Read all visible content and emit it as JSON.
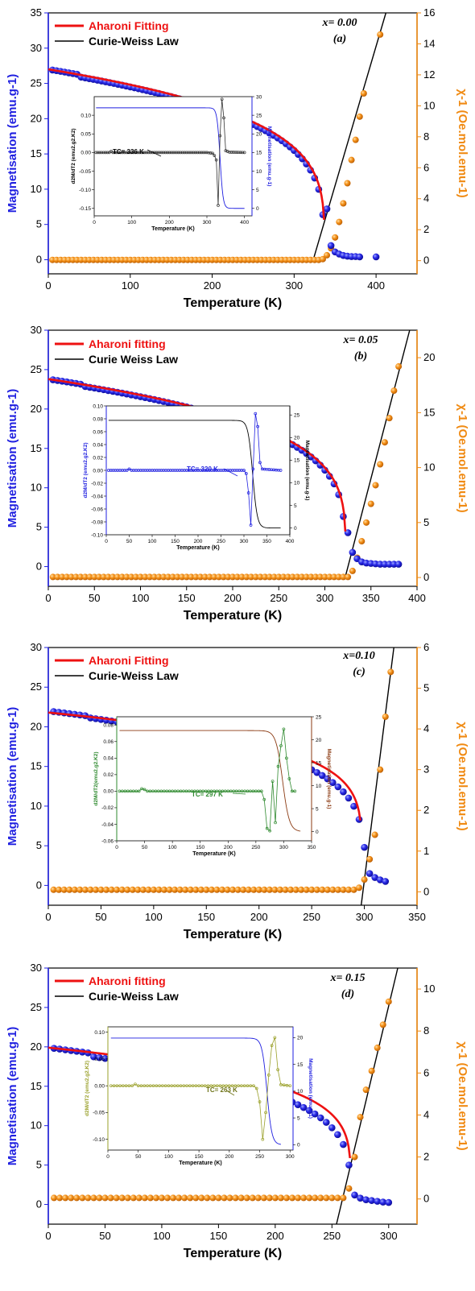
{
  "colors": {
    "mag": "#1f1fe0",
    "chi": "#f08a12",
    "fit": "#ee1111",
    "cw": "#000000"
  },
  "chart_data": [
    {
      "type": "scatter",
      "panel": "(a)",
      "composition": "x= 0.00",
      "xlabel": "Temperature (K)",
      "ylabel": "Magnetisation (emu.g-1)",
      "ylabel_right": "χ-1 (Oe.mol.emu-1)",
      "xlim": [
        0,
        450
      ],
      "ylim": [
        -2,
        35
      ],
      "y2lim": [
        -0.85,
        16
      ],
      "xticks": [
        0,
        100,
        200,
        300,
        400
      ],
      "yticks": [
        0,
        5,
        10,
        15,
        20,
        25,
        30,
        35
      ],
      "y2ticks": [
        0,
        2,
        4,
        6,
        8,
        10,
        12,
        14,
        16
      ],
      "legend": [
        "Aharoni Fitting",
        "Curie-Weiss Law"
      ],
      "mag": {
        "T0": 5,
        "T1": 335,
        "dT": 5,
        "M0": 27.0,
        "Tc": 336,
        "beta": 0.24,
        "dip": [
          40,
          0.3
        ],
        "tail": [
          [
            340,
            7.2
          ],
          [
            345,
            2.0
          ],
          [
            350,
            1.1
          ],
          [
            355,
            0.8
          ],
          [
            360,
            0.6
          ],
          [
            365,
            0.5
          ],
          [
            370,
            0.45
          ],
          [
            375,
            0.45
          ],
          [
            380,
            0.4
          ],
          [
            400,
            0.4
          ]
        ]
      },
      "chi": {
        "T0": 5,
        "T1": 330,
        "dT": 5,
        "base": 0.05,
        "pts": [
          [
            335,
            0.1
          ],
          [
            340,
            0.35
          ],
          [
            345,
            0.8
          ],
          [
            350,
            1.5
          ],
          [
            355,
            2.5
          ],
          [
            360,
            3.7
          ],
          [
            365,
            5.0
          ],
          [
            370,
            6.5
          ],
          [
            375,
            7.8
          ],
          [
            380,
            9.3
          ],
          [
            385,
            10.8
          ],
          [
            405,
            14.6
          ]
        ]
      },
      "fit": {
        "M0": 27.0,
        "Tc": 337,
        "beta": 0.24,
        "T0": 0,
        "T1": 336.5
      },
      "cw": {
        "x": [
          323,
          412
        ],
        "y": [
          0,
          16
        ]
      },
      "inset": {
        "xlabel": "Temperature (K)",
        "ylabel_left": "d2M/dT2 (emu2.g2.K2)",
        "ylabel_right": "Magnetisation (emu.g-1)",
        "xlim": [
          0,
          420
        ],
        "ylim": [
          -0.17,
          0.15
        ],
        "y2lim": [
          -2,
          30
        ],
        "xticks": [
          0,
          100,
          200,
          300,
          400
        ],
        "yticks": [
          -0.15,
          -0.1,
          -0.05,
          0.0,
          0.05,
          0.1
        ],
        "y2ticks": [
          0,
          5,
          10,
          15,
          20,
          25,
          30
        ],
        "tc_label": "TC= 336 K",
        "mag_color": "#1f1fe0",
        "d2_color": "#333333",
        "mag": {
          "M0": 27.0,
          "Tc": 335,
          "w": 4
        },
        "d2": [
          [
            5,
            0.0
          ],
          [
            40,
            0.0
          ],
          [
            45,
            0.003
          ],
          [
            50,
            0.0
          ],
          [
            300,
            0.0
          ],
          [
            315,
            -0.002
          ],
          [
            320,
            -0.008
          ],
          [
            325,
            -0.02
          ],
          [
            330,
            -0.142
          ],
          [
            335,
            0.045
          ],
          [
            340,
            0.143
          ],
          [
            345,
            0.093
          ],
          [
            350,
            0.005
          ],
          [
            360,
            0.001
          ],
          [
            400,
            0.0
          ]
        ],
        "tc_point": [
          336,
          0.0
        ]
      }
    },
    {
      "type": "scatter",
      "panel": "(b)",
      "composition": "x= 0.05",
      "xlabel": "Temperature (K)",
      "ylabel": "Magnetisation (emu.g-1)",
      "ylabel_right": "χ-1 (Oe.mol.emu-1)",
      "xlim": [
        0,
        400
      ],
      "ylim": [
        -2.5,
        30
      ],
      "y2lim": [
        -0.8,
        22.5
      ],
      "xticks": [
        0,
        50,
        100,
        150,
        200,
        250,
        300,
        350,
        400
      ],
      "yticks": [
        0,
        5,
        10,
        15,
        20,
        25,
        30
      ],
      "y2ticks": [
        0,
        5,
        10,
        15,
        20
      ],
      "legend": [
        "Aharoni fitting",
        "Curie Weiss Law"
      ],
      "mag": {
        "T0": 5,
        "T1": 320,
        "dT": 5,
        "M0": 23.8,
        "Tc": 321.5,
        "beta": 0.24,
        "dip": [
          40,
          0.2
        ],
        "tail": [
          [
            325,
            4.3
          ],
          [
            330,
            1.8
          ],
          [
            335,
            1.0
          ],
          [
            340,
            0.6
          ],
          [
            345,
            0.45
          ],
          [
            350,
            0.4
          ],
          [
            355,
            0.35
          ],
          [
            360,
            0.3
          ],
          [
            365,
            0.3
          ],
          [
            370,
            0.3
          ],
          [
            375,
            0.3
          ],
          [
            380,
            0.3
          ]
        ]
      },
      "chi": {
        "T0": 5,
        "T1": 325,
        "dT": 5,
        "base": 0.05,
        "pts": [
          [
            330,
            0.6
          ],
          [
            335,
            1.8
          ],
          [
            340,
            3.3
          ],
          [
            345,
            5.0
          ],
          [
            350,
            6.7
          ],
          [
            355,
            8.4
          ],
          [
            360,
            10.3
          ],
          [
            365,
            12.3
          ],
          [
            370,
            14.5
          ],
          [
            375,
            17.0
          ],
          [
            380,
            19.2
          ]
        ]
      },
      "fit": {
        "M0": 23.8,
        "Tc": 322.5,
        "beta": 0.24,
        "T0": 0,
        "T1": 322.2
      },
      "cw": {
        "x": [
          322,
          392
        ],
        "y": [
          0,
          22.5
        ]
      },
      "inset": {
        "xlabel": "Temperature (K)",
        "ylabel_left": "d2M/dT2 (emu2.g2.K2)",
        "ylabel_right": "Magnetisation (emu.g-1)",
        "xlim": [
          0,
          400
        ],
        "ylim": [
          -0.1,
          0.1
        ],
        "y2lim": [
          -1.5,
          27
        ],
        "xticks": [
          0,
          50,
          100,
          150,
          200,
          250,
          300,
          350,
          400
        ],
        "yticks": [
          -0.1,
          -0.08,
          -0.06,
          -0.04,
          -0.02,
          0.0,
          0.02,
          0.04,
          0.06,
          0.08,
          0.1
        ],
        "y2ticks": [
          0,
          5,
          10,
          15,
          20,
          25
        ],
        "tc_label": "TC= 320 K",
        "mag_color": "#000000",
        "d2_color": "#1f1fe0",
        "mag": {
          "M0": 23.8,
          "Tc": 319,
          "w": 5
        },
        "d2": [
          [
            5,
            0.0
          ],
          [
            45,
            0.0
          ],
          [
            50,
            0.002
          ],
          [
            55,
            0.0
          ],
          [
            300,
            0.0
          ],
          [
            305,
            -0.005
          ],
          [
            310,
            -0.035
          ],
          [
            315,
            -0.085
          ],
          [
            320,
            0.002
          ],
          [
            325,
            0.088
          ],
          [
            330,
            0.068
          ],
          [
            335,
            0.012
          ],
          [
            340,
            0.002
          ],
          [
            380,
            0.0
          ]
        ],
        "tc_point": [
          320,
          0.0
        ]
      }
    },
    {
      "type": "scatter",
      "panel": "(c)",
      "composition": "x=0.10",
      "xlabel": "Temperature (K)",
      "ylabel": "Magnetisation (emu.g-1)",
      "ylabel_right": "χ-1 (Oe.mol.emu-1)",
      "xlim": [
        0,
        350
      ],
      "ylim": [
        -2.5,
        30
      ],
      "y2lim": [
        -0.33,
        6
      ],
      "xticks": [
        0,
        50,
        100,
        150,
        200,
        250,
        300,
        350
      ],
      "yticks": [
        0,
        5,
        10,
        15,
        20,
        25,
        30
      ],
      "y2ticks": [
        0,
        1,
        2,
        3,
        4,
        5,
        6
      ],
      "legend": [
        "Aharoni Fitting",
        "Curie-Weiss Law"
      ],
      "mag": {
        "T0": 5,
        "T1": 295,
        "dT": 5,
        "M0": 22.0,
        "Tc": 299,
        "beta": 0.22,
        "dip": [
          40,
          0.2
        ],
        "tail": [
          [
            300,
            4.8
          ],
          [
            305,
            1.5
          ],
          [
            310,
            1.0
          ],
          [
            315,
            0.7
          ],
          [
            320,
            0.5
          ]
        ]
      },
      "chi": {
        "T0": 5,
        "T1": 290,
        "dT": 5,
        "base": 0.05,
        "pts": [
          [
            295,
            0.1
          ],
          [
            300,
            0.3
          ],
          [
            305,
            0.8
          ],
          [
            310,
            1.4
          ],
          [
            315,
            3.0
          ],
          [
            320,
            4.3
          ],
          [
            325,
            5.4
          ]
        ]
      },
      "fit": {
        "M0": 21.8,
        "Tc": 297.5,
        "beta": 0.18,
        "T0": 0,
        "T1": 296.2
      },
      "cw": {
        "x": [
          297,
          328
        ],
        "y": [
          -0.33,
          6
        ]
      },
      "inset": {
        "xlabel": "Temperature (K)",
        "ylabel_left": "d2M/dT2(emu2.g2.K2)",
        "ylabel_right": "Magnetisation (emu.g-1)",
        "xlim": [
          0,
          350
        ],
        "ylim": [
          -0.06,
          0.09
        ],
        "y2lim": [
          -2,
          25
        ],
        "xticks": [
          0,
          50,
          100,
          150,
          200,
          250,
          300,
          350
        ],
        "yticks": [
          -0.06,
          -0.04,
          -0.02,
          0.0,
          0.02,
          0.04,
          0.06,
          0.08
        ],
        "y2ticks": [
          0,
          5,
          10,
          15,
          20,
          25
        ],
        "tc_label": "TC= 297 K",
        "mag_color": "#8b3a12",
        "d2_color": "#2f8a2f",
        "mag": {
          "M0": 22.0,
          "Tc": 298,
          "w": 6
        },
        "d2": [
          [
            5,
            0.0
          ],
          [
            40,
            0.0
          ],
          [
            45,
            0.003
          ],
          [
            50,
            0.002
          ],
          [
            55,
            0.0
          ],
          [
            260,
            0.0
          ],
          [
            265,
            -0.01
          ],
          [
            270,
            -0.045
          ],
          [
            275,
            -0.048
          ],
          [
            280,
            0.012
          ],
          [
            285,
            -0.038
          ],
          [
            290,
            0.03
          ],
          [
            295,
            0.055
          ],
          [
            300,
            0.075
          ],
          [
            305,
            0.04
          ],
          [
            310,
            0.015
          ],
          [
            315,
            0.0
          ],
          [
            320,
            0.0
          ]
        ],
        "tc_point": [
          297,
          0.0
        ]
      }
    },
    {
      "type": "scatter",
      "panel": "(d)",
      "composition": "x= 0.15",
      "xlabel": "Temperature (K)",
      "ylabel": "Magnetisation (emu.g-1)",
      "ylabel_right": "χ-1 (Oe.mol.emu-1)",
      "xlim": [
        0,
        325
      ],
      "ylim": [
        -2.5,
        30
      ],
      "y2lim": [
        -1.2,
        11
      ],
      "xticks": [
        0,
        50,
        100,
        150,
        200,
        250,
        300
      ],
      "yticks": [
        0,
        5,
        10,
        15,
        20,
        25,
        30
      ],
      "y2ticks": [
        0,
        2,
        4,
        6,
        8,
        10
      ],
      "legend": [
        "Aharoni fitting",
        "Curie-Weiss Law"
      ],
      "mag": {
        "T0": 5,
        "T1": 260,
        "dT": 5,
        "M0": 19.9,
        "Tc": 266,
        "beta": 0.24,
        "dip": [
          40,
          0.4
        ],
        "tail": [
          [
            265,
            5.0
          ],
          [
            270,
            1.2
          ],
          [
            275,
            0.8
          ],
          [
            280,
            0.6
          ],
          [
            285,
            0.5
          ],
          [
            290,
            0.4
          ],
          [
            295,
            0.3
          ],
          [
            300,
            0.25
          ]
        ]
      },
      "chi": {
        "T0": 5,
        "T1": 260,
        "dT": 5,
        "base": 0.05,
        "pts": [
          [
            265,
            0.5
          ],
          [
            270,
            2.0
          ],
          [
            275,
            3.9
          ],
          [
            280,
            5.2
          ],
          [
            285,
            6.1
          ],
          [
            290,
            7.2
          ],
          [
            295,
            8.3
          ],
          [
            300,
            9.4
          ]
        ]
      },
      "fit": {
        "M0": 19.9,
        "Tc": 266.5,
        "beta": 0.2,
        "T0": 0,
        "T1": 265.9
      },
      "cw": {
        "x": [
          254,
          308
        ],
        "y": [
          -1.2,
          11
        ]
      },
      "inset": {
        "xlabel": "Temperature (K)",
        "ylabel_left": "d2M/dT2 (emu2.g2.K2)",
        "ylabel_right": "Magnetisation (emu.g-1)",
        "xlim": [
          0,
          305
        ],
        "ylim": [
          -0.12,
          0.11
        ],
        "y2lim": [
          -1,
          22
        ],
        "xticks": [
          0,
          50,
          100,
          150,
          200,
          250,
          300
        ],
        "yticks": [
          -0.1,
          -0.05,
          0.0,
          0.05,
          0.1
        ],
        "y2ticks": [
          0,
          5,
          10,
          15,
          20
        ],
        "tc_label": "TC= 263 K",
        "mag_color": "#1f1fe0",
        "d2_color": "#9aa02a",
        "mag": {
          "M0": 19.9,
          "Tc": 262,
          "w": 4
        },
        "d2": [
          [
            5,
            0.0
          ],
          [
            40,
            0.0
          ],
          [
            45,
            0.003
          ],
          [
            50,
            0.0
          ],
          [
            240,
            0.0
          ],
          [
            245,
            -0.005
          ],
          [
            250,
            -0.03
          ],
          [
            255,
            -0.1
          ],
          [
            260,
            -0.05
          ],
          [
            265,
            0.02
          ],
          [
            270,
            0.075
          ],
          [
            275,
            0.09
          ],
          [
            280,
            0.03
          ],
          [
            285,
            0.002
          ],
          [
            300,
            0.0
          ]
        ],
        "tc_point": [
          263,
          0.0
        ]
      }
    }
  ]
}
